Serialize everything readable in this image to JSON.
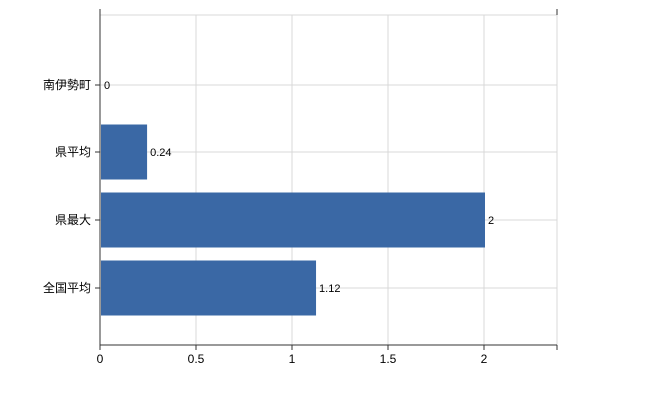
{
  "chart_data": {
    "type": "bar",
    "orientation": "horizontal",
    "title": "",
    "xlabel": "",
    "ylabel": "",
    "categories": [
      "南伊勢町",
      "県平均",
      "県最大",
      "全国平均"
    ],
    "values": [
      0,
      0.24,
      2,
      1.12
    ],
    "value_labels": [
      "0",
      "0.24",
      "2",
      "1.12"
    ],
    "x_ticks": [
      0,
      0.5,
      1,
      1.5,
      2
    ],
    "x_tick_labels": [
      "0",
      "0.5",
      "1",
      "1.5",
      "2"
    ],
    "xlim": [
      0,
      2.38
    ],
    "grid": true,
    "legend": "none",
    "colors": {
      "bar": "#3a68a5",
      "axis": "#333333",
      "grid": "#d9d9d9",
      "plot_border": "#d9d9d9",
      "text": "#000000",
      "background": "#ffffff"
    }
  }
}
